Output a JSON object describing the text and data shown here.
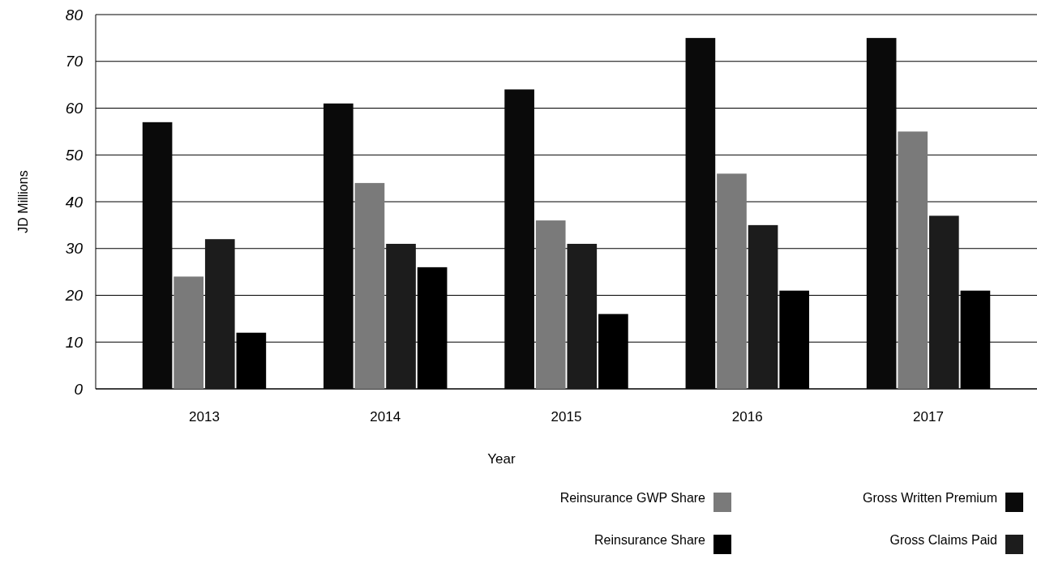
{
  "chart_data": {
    "type": "bar",
    "xlabel": "Year",
    "ylabel": "JD Millions",
    "categories": [
      "2013",
      "2014",
      "2015",
      "2016",
      "2017"
    ],
    "series": [
      {
        "name": "Gross Written Premium",
        "color": "#0a0a0a",
        "values": [
          57,
          61,
          64,
          75,
          75
        ]
      },
      {
        "name": "Reinsurance GWP Share",
        "color": "#7a7a7a",
        "values": [
          24,
          44,
          36,
          46,
          55
        ]
      },
      {
        "name": "Gross Claims Paid",
        "color": "#1c1c1c",
        "values": [
          32,
          31,
          31,
          35,
          37
        ]
      },
      {
        "name": "Reinsurance Share",
        "color": "#000000",
        "values": [
          12,
          26,
          16,
          21,
          21
        ]
      }
    ],
    "ylim": [
      0,
      80
    ],
    "yticks": [
      0,
      10,
      20,
      30,
      40,
      50,
      60,
      70,
      80
    ],
    "grid": "y",
    "legend": "bottom right"
  }
}
